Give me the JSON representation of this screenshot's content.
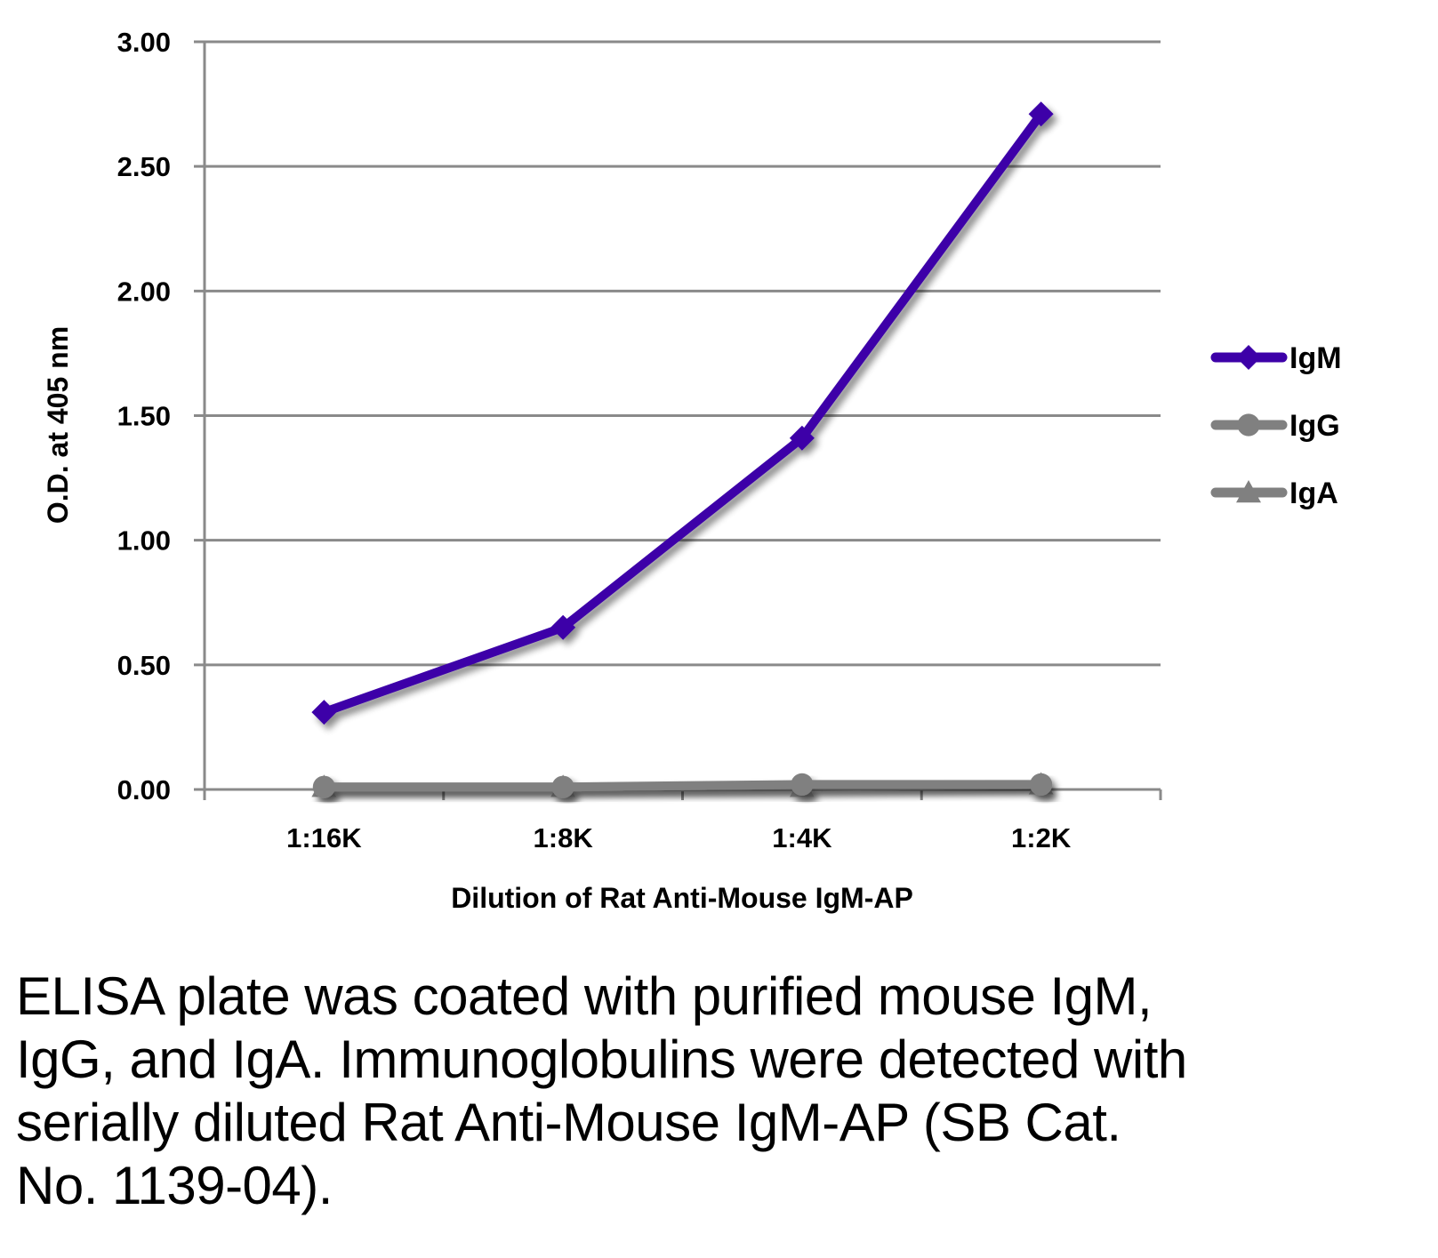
{
  "chart_data": {
    "type": "line",
    "title": "",
    "xlabel": "Dilution of Rat Anti-Mouse IgM-AP",
    "ylabel": "O.D. at 405 nm",
    "categories": [
      "1:16K",
      "1:8K",
      "1:4K",
      "1:2K"
    ],
    "ylim": [
      0,
      3.0
    ],
    "yticks": [
      0.0,
      0.5,
      1.0,
      1.5,
      2.0,
      2.5,
      3.0
    ],
    "ytick_labels": [
      "0.00",
      "0.50",
      "1.00",
      "1.50",
      "2.00",
      "2.50",
      "3.00"
    ],
    "grid": "horizontal",
    "legend_position": "right",
    "series": [
      {
        "name": "IgM",
        "marker": "diamond",
        "color": "#3d00a8",
        "values": [
          0.31,
          0.65,
          1.41,
          2.71
        ]
      },
      {
        "name": "IgG",
        "marker": "circle",
        "color": "#808080",
        "values": [
          0.01,
          0.01,
          0.02,
          0.02
        ]
      },
      {
        "name": "IgA",
        "marker": "triangle",
        "color": "#808080",
        "values": [
          0.01,
          0.01,
          0.01,
          0.02
        ]
      }
    ]
  },
  "caption": "ELISA plate was coated with purified mouse IgM, IgG, and IgA.  Immunoglobulins were detected with serially diluted Rat Anti-Mouse IgM-AP (SB Cat. No. 1139-04)."
}
